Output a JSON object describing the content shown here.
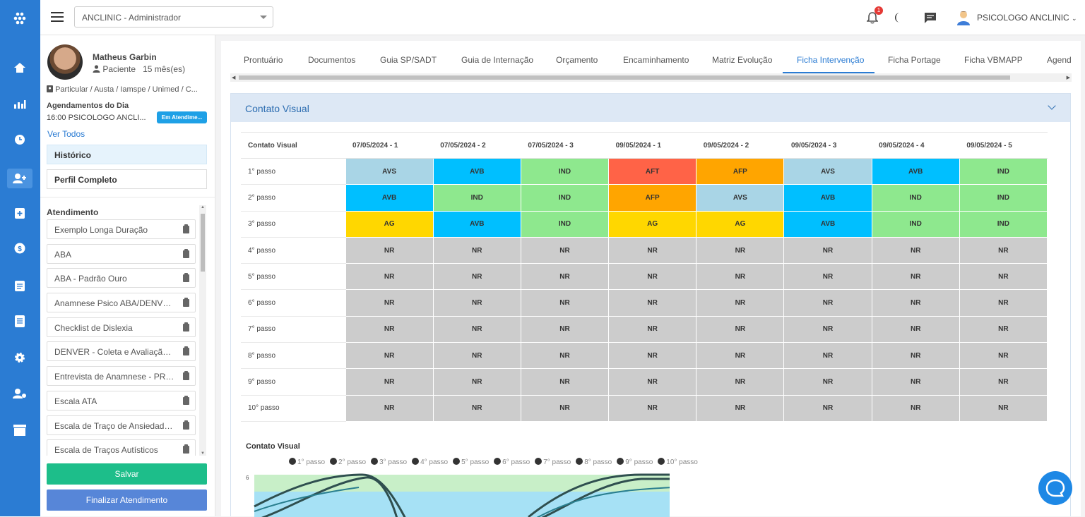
{
  "topbar": {
    "clinic": "ANCLINIC - Administrador",
    "notification_count": "1",
    "user": "PSICOLOGO ANCLINIC"
  },
  "patient": {
    "name": "Matheus Garbin",
    "type": "Paciente",
    "age": "15 mês(es)",
    "convenios": "Particular / Austa / Iamspe / Unimed / C..."
  },
  "agenda": {
    "title": "Agendamentos do Dia",
    "item": "16:00 PSICOLOGO ANCLI...",
    "status": "Em Atendime...",
    "ver_todos": "Ver Todos"
  },
  "buttons": {
    "historico": "Histórico",
    "perfil": "Perfil Completo",
    "salvar": "Salvar",
    "finalizar": "Finalizar Atendimento"
  },
  "atendimento": {
    "title": "Atendimento",
    "forms": [
      "Exemplo Longa Duração",
      "ABA",
      "ABA - Padrão Ouro",
      "Anamnese Psico ABA/DENVER",
      "Checklist de Dislexia",
      "DENVER - Coleta e Avaliação - ...",
      "Entrevista de Anamnese - PROT...",
      "Escala ATA",
      "Escala de Traço de Ansiedade In...",
      "Escala de Traços Autísticos"
    ]
  },
  "tabs": [
    "Prontuário",
    "Documentos",
    "Guia SP/SADT",
    "Guia de Internação",
    "Orçamento",
    "Encaminhamento",
    "Matriz Evolução",
    "Ficha Intervenção",
    "Ficha Portage",
    "Ficha VBMAPP",
    "Agend"
  ],
  "active_tab": "Ficha Intervenção",
  "section": {
    "title": "Contato Visual",
    "table_header": "Contato Visual",
    "dates": [
      "07/05/2024 - 1",
      "07/05/2024 - 2",
      "07/05/2024 - 3",
      "09/05/2024 - 1",
      "09/05/2024 - 2",
      "09/05/2024 - 3",
      "09/05/2024 - 4",
      "09/05/2024 - 5"
    ],
    "rows": [
      {
        "label": "1° passo",
        "cells": [
          "AVS",
          "AVB",
          "IND",
          "AFT",
          "AFP",
          "AVS",
          "AVB",
          "IND"
        ]
      },
      {
        "label": "2° passo",
        "cells": [
          "AVB",
          "IND",
          "IND",
          "AFP",
          "AVS",
          "AVB",
          "IND",
          "IND"
        ]
      },
      {
        "label": "3° passo",
        "cells": [
          "AG",
          "AVB",
          "IND",
          "AG",
          "AG",
          "AVB",
          "IND",
          "IND"
        ]
      },
      {
        "label": "4° passo",
        "cells": [
          "NR",
          "NR",
          "NR",
          "NR",
          "NR",
          "NR",
          "NR",
          "NR"
        ]
      },
      {
        "label": "5° passo",
        "cells": [
          "NR",
          "NR",
          "NR",
          "NR",
          "NR",
          "NR",
          "NR",
          "NR"
        ]
      },
      {
        "label": "6° passo",
        "cells": [
          "NR",
          "NR",
          "NR",
          "NR",
          "NR",
          "NR",
          "NR",
          "NR"
        ]
      },
      {
        "label": "7° passo",
        "cells": [
          "NR",
          "NR",
          "NR",
          "NR",
          "NR",
          "NR",
          "NR",
          "NR"
        ]
      },
      {
        "label": "8° passo",
        "cells": [
          "NR",
          "NR",
          "NR",
          "NR",
          "NR",
          "NR",
          "NR",
          "NR"
        ]
      },
      {
        "label": "9° passo",
        "cells": [
          "NR",
          "NR",
          "NR",
          "NR",
          "NR",
          "NR",
          "NR",
          "NR"
        ]
      },
      {
        "label": "10° passo",
        "cells": [
          "NR",
          "NR",
          "NR",
          "NR",
          "NR",
          "NR",
          "NR",
          "NR"
        ]
      }
    ]
  },
  "chart_data": {
    "type": "line",
    "title": "Contato Visual",
    "series": [
      {
        "name": "1° passo"
      },
      {
        "name": "2° passo"
      },
      {
        "name": "3° passo"
      },
      {
        "name": "4° passo"
      },
      {
        "name": "5° passo"
      },
      {
        "name": "6° passo"
      },
      {
        "name": "7° passo"
      },
      {
        "name": "8° passo"
      },
      {
        "name": "9° passo"
      },
      {
        "name": "10° passo"
      }
    ],
    "ytick_visible": "6"
  },
  "colors": {
    "AVS": "#a9d5e6",
    "AVB": "#00bfff",
    "IND": "#8ee88e",
    "AFT": "#ff6347",
    "AFP": "#ffa500",
    "AG": "#ffd700",
    "NR": "#cccccc"
  }
}
